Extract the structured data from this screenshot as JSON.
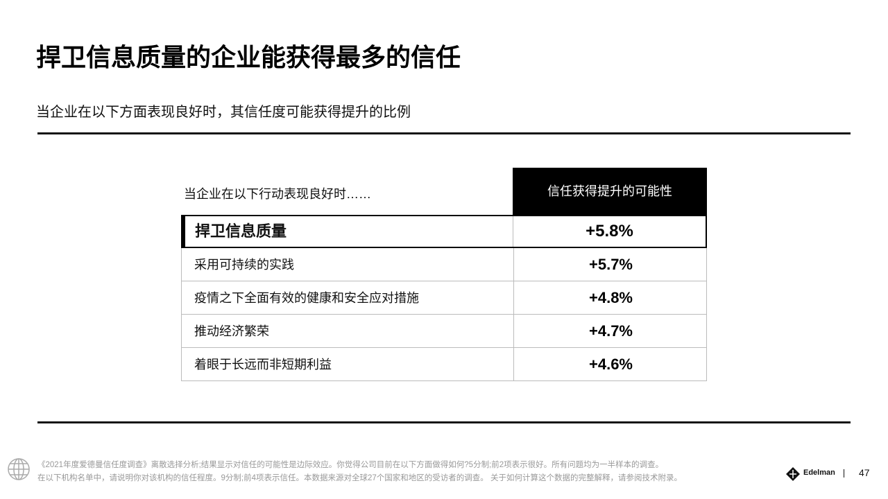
{
  "header": {
    "title": "捍卫信息质量的企业能获得最多的信任",
    "subtitle": "当企业在以下方面表现良好时，其信任度可能获得提升的比例"
  },
  "table": {
    "columns": [
      "当企业在以下行动表现良好时……",
      "信任获得提升的可能性"
    ],
    "rows": [
      [
        "捍卫信息质量",
        "+5.8%"
      ],
      [
        "采用可持续的实践",
        "+5.7%"
      ],
      [
        "疫情之下全面有效的健康和安全应对措施",
        "+4.8%"
      ],
      [
        "推动经济繁荣",
        "+4.7%"
      ],
      [
        "着眼于长远而非短期利益",
        "+4.6%"
      ]
    ]
  },
  "footer": {
    "notes": [
      "《2021年度爱德曼信任度调查》离散选择分析;结果显示对信任的可能性是边际效应。你觉得公司目前在以下方面做得如何?5分制;前2项表示很好。所有问题均为一半样本的调查。",
      "在以下机构名单中，请说明你对该机构的信任程度。9分制;前4项表示信任。本数据来源对全球27个国家和地区的受访者的调查。 关于如何计算这个数据的完整解释，请参阅技术附录。"
    ],
    "logo": "Edelman",
    "page": "47"
  }
}
